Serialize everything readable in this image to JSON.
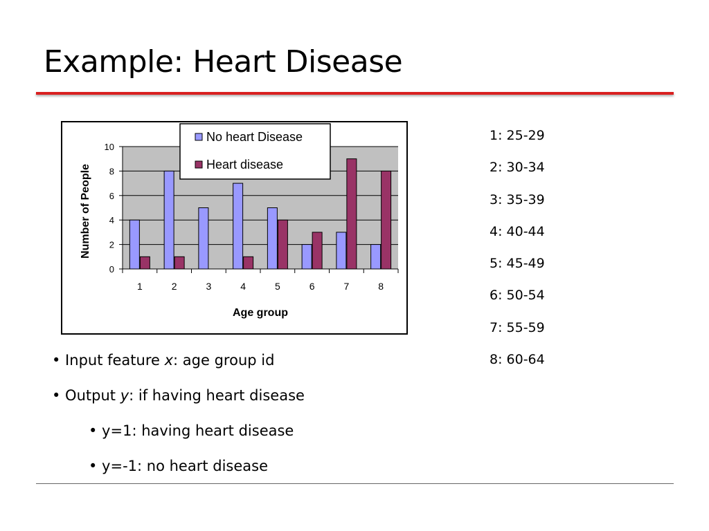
{
  "slide": {
    "title": "Example: Heart Disease",
    "age_groups": [
      "1: 25-29",
      "2: 30-34",
      "3: 35-39",
      "4: 40-44",
      "5: 45-49",
      "6: 50-54",
      "7: 55-59",
      "8: 60-64"
    ],
    "bullets": [
      {
        "prefix": "•  Input feature ",
        "var": "x",
        "suffix": ": age group id",
        "level": 1
      },
      {
        "prefix": "• Output ",
        "var": "y",
        "suffix": ":  if having heart disease",
        "level": 1
      },
      {
        "prefix": "• y=1: having heart disease",
        "var": "",
        "suffix": "",
        "level": 2
      },
      {
        "prefix": "• y=-1: no heart disease",
        "var": "",
        "suffix": "",
        "level": 2
      }
    ]
  },
  "chart_data": {
    "type": "bar",
    "categories": [
      "1",
      "2",
      "3",
      "4",
      "5",
      "6",
      "7",
      "8"
    ],
    "series": [
      {
        "name": "No heart Disease",
        "values": [
          4,
          8,
          5,
          7,
          5,
          2,
          3,
          2
        ],
        "color": "#9999ff"
      },
      {
        "name": "Heart disease",
        "values": [
          1,
          1,
          0,
          1,
          4,
          3,
          9,
          8
        ],
        "color": "#993366"
      }
    ],
    "title": "",
    "xlabel": "Age group",
    "ylabel": "Number of People",
    "ylim": [
      0,
      10
    ],
    "yticks": [
      0,
      2,
      4,
      6,
      8,
      10
    ],
    "grid": true,
    "plot_background": "#c0c0c0",
    "legend_position": "top-center"
  }
}
